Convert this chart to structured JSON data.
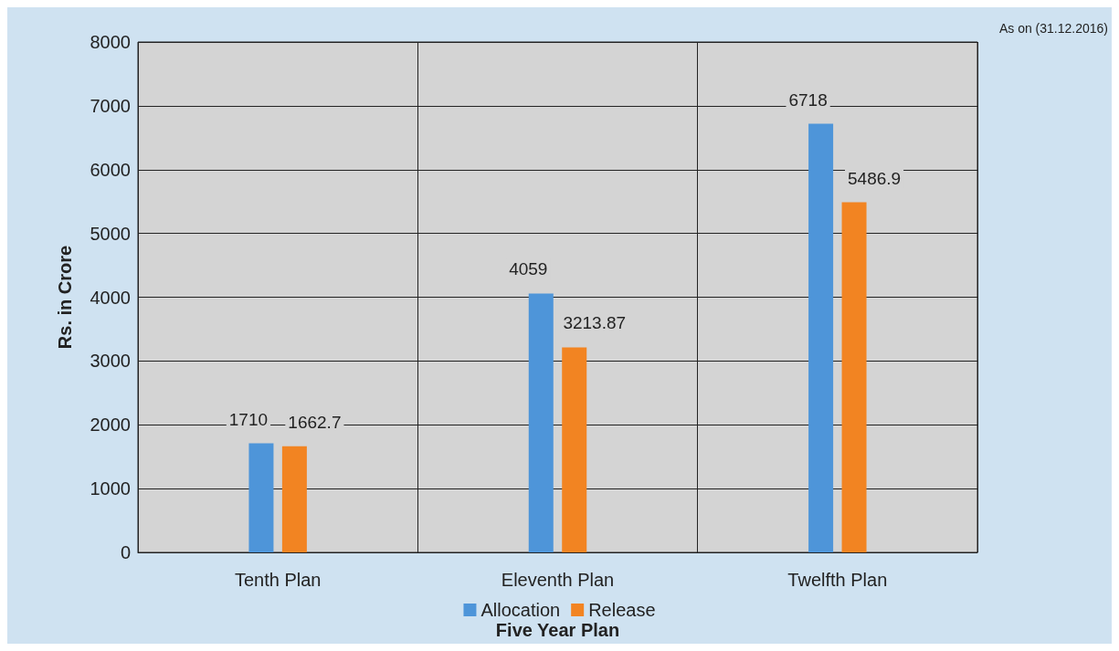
{
  "chart_data": {
    "type": "bar",
    "xlabel": "Five Year Plan",
    "ylabel": "Rs. in Crore",
    "annotations": [
      "As on (31.12.2016)"
    ],
    "categories": [
      "Tenth Plan",
      "Eleventh Plan",
      "Twelfth Plan"
    ],
    "series": [
      {
        "name": "Allocation",
        "color": "#4e95d9",
        "values": [
          1710,
          4059,
          6718
        ]
      },
      {
        "name": "Release",
        "color": "#f28422",
        "values": [
          1662.7,
          3213.87,
          5486.9
        ]
      }
    ],
    "ylim": [
      0,
      8000
    ],
    "yticks": [
      0,
      1000,
      2000,
      3000,
      4000,
      5000,
      6000,
      7000,
      8000
    ],
    "grid": true,
    "legend": "bottom",
    "data_labels": true
  }
}
